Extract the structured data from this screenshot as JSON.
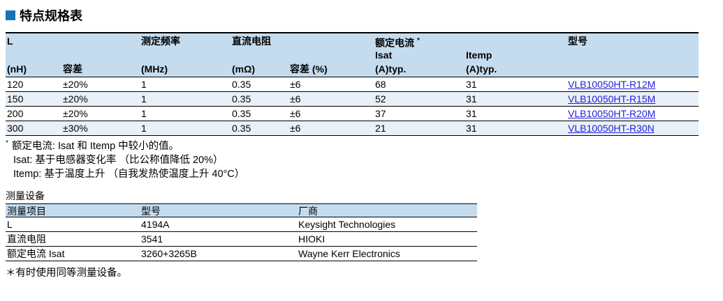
{
  "section_title": "特点规格表",
  "colors": {
    "accent_blue": "#1572b8",
    "table_header_bg": "#c5dcee",
    "alt_row_bg": "#e9f0f7",
    "link_blue": "#2020dd"
  },
  "spec_table": {
    "header": {
      "l_label": "L",
      "l_unit": "(nH)",
      "tolerance_label": "容差",
      "test_freq_label": "测定频率",
      "test_freq_unit": "(MHz)",
      "dc_resistance_label": "直流电阻",
      "dc_resistance_unit": "(mΩ)",
      "dc_tolerance_label": "容差 (%)",
      "rated_current_label": "额定电流",
      "rated_current_footnote_mark": "*",
      "isat_label": "Isat",
      "isat_unit": "(A)typ.",
      "itemp_label": "Itemp",
      "itemp_unit": "(A)typ.",
      "part_number_label": "型号"
    },
    "rows": [
      {
        "l": "120",
        "tolerance": "±20%",
        "freq": "1",
        "rdc": "0.35",
        "rdc_tol": "±6",
        "isat": "68",
        "itemp": "31",
        "part_number": "VLB10050HT-R12M"
      },
      {
        "l": "150",
        "tolerance": "±20%",
        "freq": "1",
        "rdc": "0.35",
        "rdc_tol": "±6",
        "isat": "52",
        "itemp": "31",
        "part_number": "VLB10050HT-R15M"
      },
      {
        "l": "200",
        "tolerance": "±20%",
        "freq": "1",
        "rdc": "0.35",
        "rdc_tol": "±6",
        "isat": "37",
        "itemp": "31",
        "part_number": "VLB10050HT-R20M"
      },
      {
        "l": "300",
        "tolerance": "±30%",
        "freq": "1",
        "rdc": "0.35",
        "rdc_tol": "±6",
        "isat": "21",
        "itemp": "31",
        "part_number": "VLB10050HT-R30N"
      }
    ]
  },
  "footnotes": {
    "mark": "*",
    "line1": "额定电流: Isat 和 Itemp 中较小的值。",
    "line2": "Isat: 基于电感器变化率 （比公称值降低 20%）",
    "line3": "Itemp: 基于温度上升 （自我发热使温度上升 40°C）"
  },
  "equipment": {
    "title": "测量设备",
    "headers": [
      "测量项目",
      "型号",
      "厂商"
    ],
    "rows": [
      {
        "item": "L",
        "model": "4194A",
        "manufacturer": "Keysight Technologies"
      },
      {
        "item": "直流电阻",
        "model": "3541",
        "manufacturer": "HIOKI"
      },
      {
        "item": "额定电流 Isat",
        "model": "3260+3265B",
        "manufacturer": "Wayne Kerr Electronics"
      }
    ],
    "note": "＊有时使用同等测量设备。"
  }
}
